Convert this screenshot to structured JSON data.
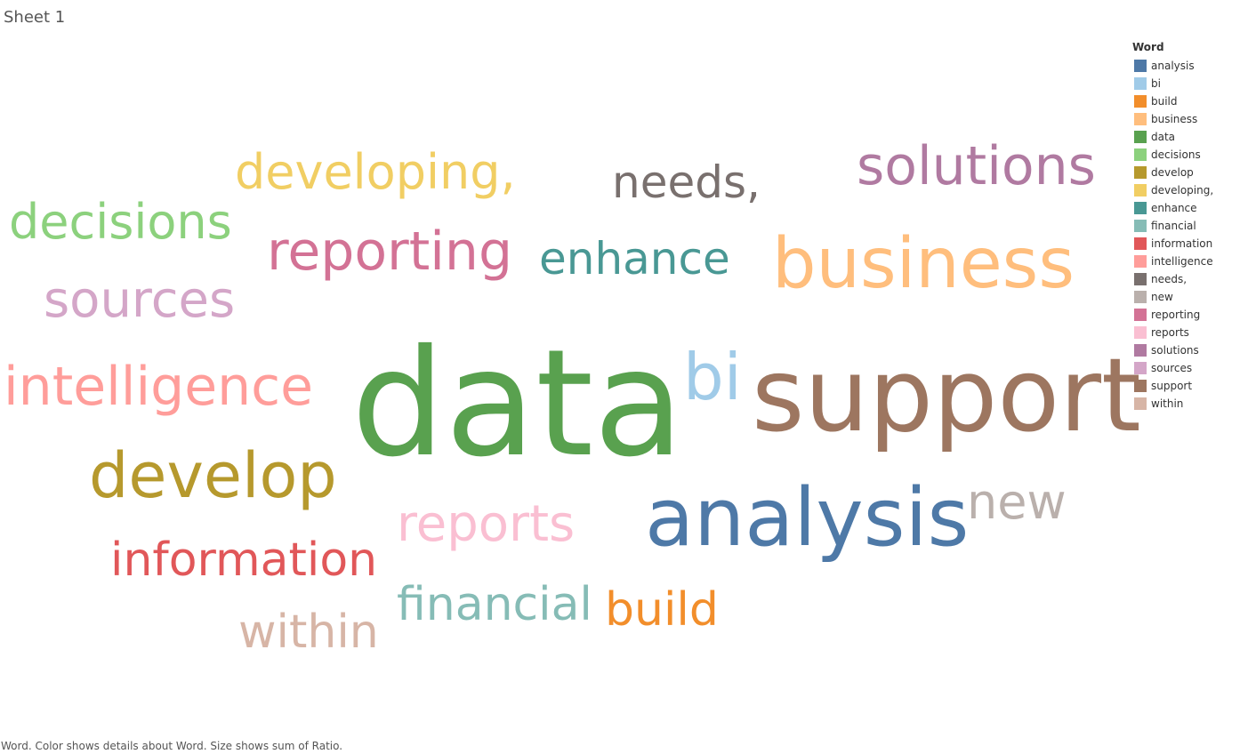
{
  "sheet": {
    "title": "Sheet 1"
  },
  "caption": "Word.  Color shows details about Word.  Size shows sum of Ratio.",
  "chart_data": {
    "type": "wordcloud",
    "legend": {
      "title": "Word",
      "placement": "right",
      "items": [
        {
          "label": "analysis",
          "color": "#4e79a7"
        },
        {
          "label": "bi",
          "color": "#a0cbe8"
        },
        {
          "label": "build",
          "color": "#f28e2b"
        },
        {
          "label": "business",
          "color": "#ffbe7d"
        },
        {
          "label": "data",
          "color": "#59a14f"
        },
        {
          "label": "decisions",
          "color": "#8cd17d"
        },
        {
          "label": "develop",
          "color": "#b6992d"
        },
        {
          "label": "developing,",
          "color": "#f1ce63"
        },
        {
          "label": "enhance",
          "color": "#499894"
        },
        {
          "label": "financial",
          "color": "#86bcb6"
        },
        {
          "label": "information",
          "color": "#e15759"
        },
        {
          "label": "intelligence",
          "color": "#ff9d9a"
        },
        {
          "label": "needs,",
          "color": "#79706e"
        },
        {
          "label": "new",
          "color": "#bab0ac"
        },
        {
          "label": "reporting",
          "color": "#d37295"
        },
        {
          "label": "reports",
          "color": "#fabfd2"
        },
        {
          "label": "solutions",
          "color": "#b07aa1"
        },
        {
          "label": "sources",
          "color": "#d4a6c8"
        },
        {
          "label": "support",
          "color": "#9d7660"
        },
        {
          "label": "within",
          "color": "#d7b5a6"
        }
      ]
    },
    "words": [
      {
        "text": "data",
        "ratio": 1.0,
        "color": "#59a14f"
      },
      {
        "text": "support",
        "ratio": 0.72,
        "color": "#9d7660"
      },
      {
        "text": "analysis",
        "ratio": 0.6,
        "color": "#4e79a7"
      },
      {
        "text": "business",
        "ratio": 0.5,
        "color": "#ffbe7d"
      },
      {
        "text": "develop",
        "ratio": 0.44,
        "color": "#b6992d"
      },
      {
        "text": "intelligence",
        "ratio": 0.36,
        "color": "#ff9d9a"
      },
      {
        "text": "solutions",
        "ratio": 0.34,
        "color": "#b07aa1"
      },
      {
        "text": "bi",
        "ratio": 0.34,
        "color": "#a0cbe8"
      },
      {
        "text": "reporting",
        "ratio": 0.33,
        "color": "#d37295"
      },
      {
        "text": "sources",
        "ratio": 0.3,
        "color": "#d4a6c8"
      },
      {
        "text": "reports",
        "ratio": 0.3,
        "color": "#fabfd2"
      },
      {
        "text": "decisions",
        "ratio": 0.28,
        "color": "#8cd17d"
      },
      {
        "text": "developing,",
        "ratio": 0.28,
        "color": "#f1ce63"
      },
      {
        "text": "new",
        "ratio": 0.27,
        "color": "#bab0ac"
      },
      {
        "text": "information",
        "ratio": 0.27,
        "color": "#e15759"
      },
      {
        "text": "financial",
        "ratio": 0.26,
        "color": "#86bcb6"
      },
      {
        "text": "needs,",
        "ratio": 0.25,
        "color": "#79706e"
      },
      {
        "text": "enhance",
        "ratio": 0.25,
        "color": "#499894"
      },
      {
        "text": "build",
        "ratio": 0.25,
        "color": "#f28e2b"
      },
      {
        "text": "within",
        "ratio": 0.24,
        "color": "#d7b5a6"
      }
    ]
  }
}
